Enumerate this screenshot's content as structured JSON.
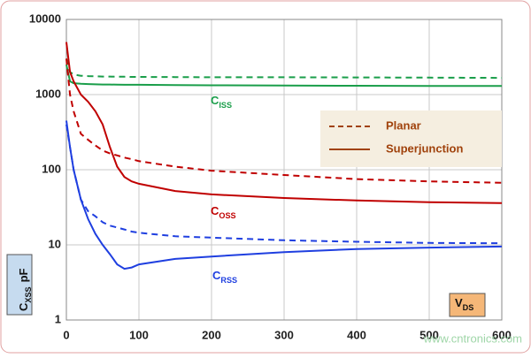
{
  "chart_data": {
    "type": "line",
    "x": [
      0,
      5,
      10,
      20,
      30,
      40,
      50,
      60,
      70,
      80,
      90,
      100,
      150,
      200,
      300,
      400,
      500,
      600
    ],
    "series": [
      {
        "color": "#1a9e4a",
        "dash": false,
        "values": [
          2500,
          1500,
          1420,
          1390,
          1380,
          1370,
          1360,
          1360,
          1355,
          1350,
          1350,
          1350,
          1340,
          1330,
          1320,
          1310,
          1300,
          1300
        ]
      },
      {
        "color": "#1a9e4a",
        "dash": true,
        "values": [
          3000,
          2000,
          1850,
          1780,
          1760,
          1750,
          1740,
          1740,
          1730,
          1730,
          1720,
          1720,
          1710,
          1700,
          1700,
          1690,
          1680,
          1670
        ]
      },
      {
        "color": "#c00000",
        "dash": false,
        "values": [
          5000,
          2000,
          1500,
          1000,
          800,
          600,
          400,
          200,
          110,
          80,
          70,
          65,
          52,
          47,
          42,
          39,
          37,
          36
        ]
      },
      {
        "color": "#c00000",
        "dash": true,
        "values": [
          3000,
          1000,
          600,
          300,
          250,
          210,
          180,
          165,
          155,
          145,
          138,
          130,
          110,
          97,
          85,
          75,
          70,
          67
        ]
      },
      {
        "color": "#1f3fe0",
        "dash": false,
        "values": [
          450,
          200,
          100,
          40,
          22,
          14,
          10,
          7.5,
          5.5,
          4.8,
          5,
          5.5,
          6.5,
          7,
          8,
          8.8,
          9.2,
          9.5
        ]
      },
      {
        "color": "#1f3fe0",
        "dash": true,
        "values": [
          400,
          200,
          100,
          40,
          28,
          24,
          20,
          18,
          17,
          16,
          15,
          14.5,
          13,
          12.5,
          11.5,
          11,
          10.6,
          10.5
        ]
      }
    ],
    "xlim": [
      0,
      600
    ],
    "xticks": [
      0,
      100,
      200,
      300,
      400,
      500,
      600
    ],
    "ylim": [
      1,
      10000
    ],
    "yticks": [
      1,
      10,
      100,
      1000,
      10000
    ],
    "log_y": true,
    "grid": true,
    "legend": [
      {
        "label": "Planar",
        "dash": true,
        "color": "#a0420c"
      },
      {
        "label": "Superjunction",
        "dash": false,
        "color": "#a0420c"
      }
    ],
    "annotations": [
      {
        "text": "C",
        "sub": "ISS",
        "color": "#1a9e4a"
      },
      {
        "text": "C",
        "sub": "OSS",
        "color": "#c00000"
      },
      {
        "text": "C",
        "sub": "RSS",
        "color": "#1f3fe0"
      }
    ],
    "ylabel": {
      "text": "C",
      "sub": "XSS",
      "unit": "pF"
    },
    "xlabel": {
      "text": "V",
      "sub": "DS"
    },
    "watermark": "www.cntronics.com"
  }
}
